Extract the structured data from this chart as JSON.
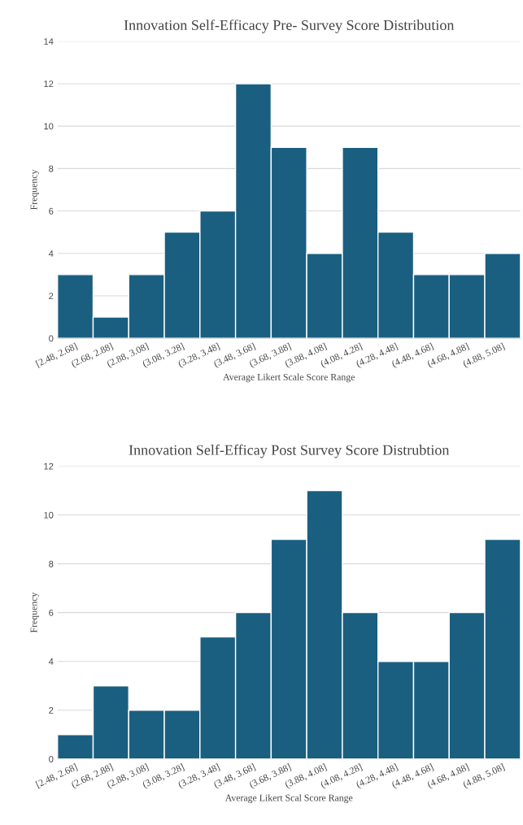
{
  "chart_data": [
    {
      "type": "bar",
      "title": "Innovation Self-Efficacy Pre- Survey Score Distribution",
      "xlabel": "Average Likert Scale Score Range",
      "ylabel": "Frequency",
      "categories": [
        "[2.48, 2.68]",
        "(2.68, 2.88]",
        "(2.88, 3.08]",
        "(3.08, 3.28]",
        "(3.28, 3.48]",
        "(3.48, 3.68]",
        "(3.68, 3.88]",
        "(3.88, 4.08]",
        "(4.08, 4.28]",
        "(4.28, 4.48]",
        "(4.48, 4.68]",
        "(4.68, 4.88]",
        "(4.88, 5.08]"
      ],
      "values": [
        3,
        1,
        3,
        5,
        6,
        12,
        9,
        4,
        9,
        5,
        3,
        3,
        4
      ],
      "color": "#1a5f80",
      "ylim": [
        0,
        14
      ],
      "yticks": [
        0,
        2,
        4,
        6,
        8,
        10,
        12,
        14
      ],
      "grid": "y"
    },
    {
      "type": "bar",
      "title": "Innovation Self-Efficay Post Survey Score Distrubtion",
      "xlabel": "Average Likert Scal Score Range",
      "ylabel": "Frequency",
      "categories": [
        "[2.48, 2.68]",
        "(2.68, 2.88]",
        "(2.88, 3.08]",
        "(3.08, 3.28]",
        "(3.28, 3.48]",
        "(3.48, 3.68]",
        "(3.68, 3.88]",
        "(3.88, 4.08]",
        "(4.08, 4.28]",
        "(4.28, 4.48]",
        "(4.48, 4.68]",
        "(4.68, 4.88]",
        "(4.88, 5.08]"
      ],
      "values": [
        1,
        3,
        2,
        2,
        5,
        6,
        9,
        11,
        6,
        4,
        4,
        6,
        9
      ],
      "color": "#1a5f80",
      "ylim": [
        0,
        12
      ],
      "yticks": [
        0,
        2,
        4,
        6,
        8,
        10,
        12
      ],
      "grid": "y"
    }
  ]
}
